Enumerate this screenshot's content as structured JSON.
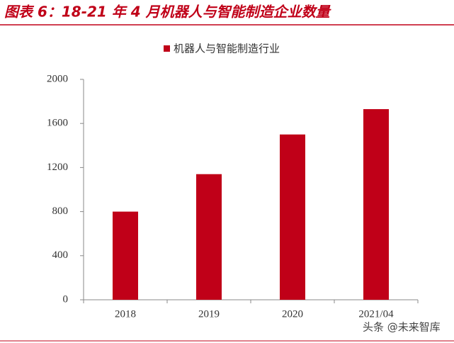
{
  "chart_data": {
    "type": "bar",
    "title": "图表 6：18-21 年 4 月机器人与智能制造企业数量",
    "categories": [
      "2018",
      "2019",
      "2020",
      "2021/04"
    ],
    "series": [
      {
        "name": "机器人与智能制造行业",
        "color": "#c00018",
        "values": [
          800,
          1140,
          1500,
          1730
        ]
      }
    ],
    "ylim": [
      0,
      2000
    ],
    "yticks": [
      0,
      400,
      800,
      1200,
      1600,
      2000
    ],
    "grid": false,
    "legend": "top",
    "watermark": "头条 @未来智库"
  }
}
